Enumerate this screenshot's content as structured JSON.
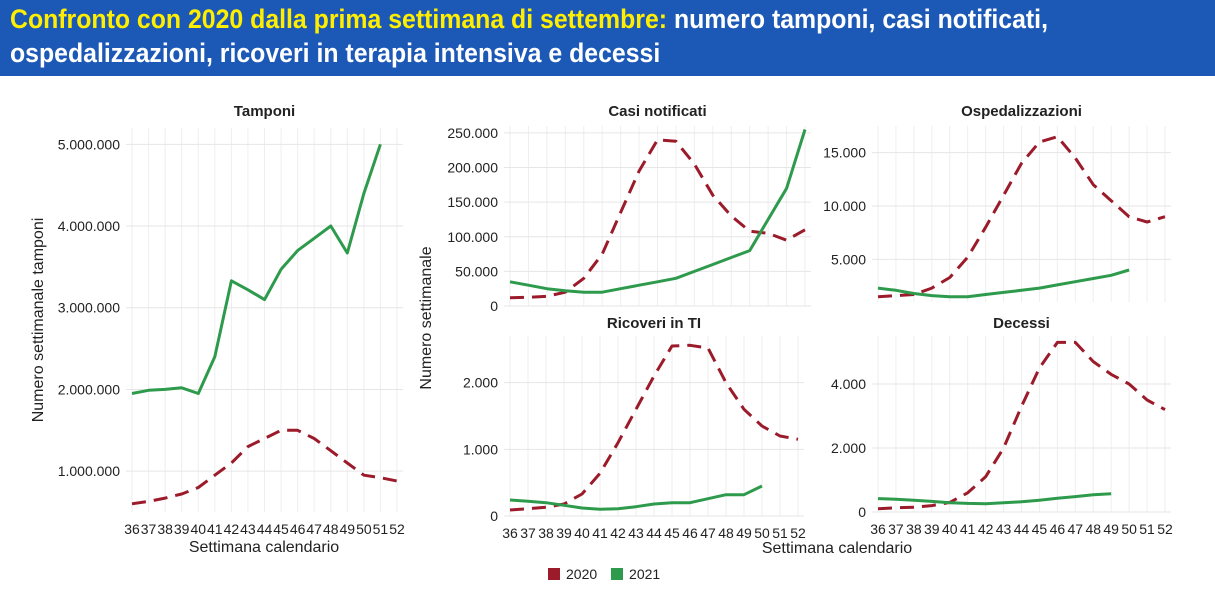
{
  "header": {
    "title_highlight": "Confronto con 2020 dalla prima settimana di settembre:",
    "title_rest_1": "numero tamponi, casi notificati,",
    "title_line_2": "ospedalizzazioni, ricoveri in terapia intensiva e decessi"
  },
  "colors": {
    "banner": "#1c59b7",
    "highlight": "#ffee00",
    "s2020": "#9b1b2a",
    "s2021": "#2e9a4c"
  },
  "legend": [
    {
      "label": "2020",
      "color": "#9b1b2a",
      "style": "dashed"
    },
    {
      "label": "2021",
      "color": "#2e9a4c",
      "style": "solid"
    }
  ],
  "shared_axes": {
    "left_xlabel": "Settimana calendario",
    "left_ylabel": "Numero settimanale tamponi",
    "right_xlabel": "Settimana calendario",
    "right_ylabel": "Numero settimanale"
  },
  "chart_data": [
    {
      "type": "line",
      "title": "Tamponi",
      "x": [
        36,
        37,
        38,
        39,
        40,
        41,
        42,
        43,
        44,
        45,
        46,
        47,
        48,
        49,
        50,
        51,
        52
      ],
      "ylim": [
        500000,
        5200000
      ],
      "yticks": [
        1000000,
        2000000,
        3000000,
        4000000,
        5000000
      ],
      "ytick_labels": [
        "1.000.000",
        "2.000.000",
        "3.000.000",
        "4.000.000",
        "5.000.000"
      ],
      "xtick_labels": [
        "36",
        "37",
        "38",
        "39",
        "40",
        "41",
        "42",
        "43",
        "44",
        "45",
        "46",
        "47",
        "48",
        "49",
        "50",
        "51",
        "52"
      ],
      "series": [
        {
          "name": "2020",
          "values": [
            600000,
            630000,
            670000,
            720000,
            800000,
            950000,
            1100000,
            1300000,
            1400000,
            1500000,
            1500000,
            1400000,
            1250000,
            1100000,
            950000,
            920000,
            880000
          ]
        },
        {
          "name": "2021",
          "values": [
            1950000,
            1990000,
            2000000,
            2020000,
            1950000,
            2400000,
            3330000,
            3220000,
            3100000,
            3470000,
            3700000,
            3850000,
            4000000,
            3670000,
            4400000,
            5000000,
            null
          ]
        }
      ]
    },
    {
      "type": "line",
      "title": "Casi notificati",
      "x": [
        36,
        37,
        38,
        39,
        40,
        41,
        42,
        43,
        44,
        45,
        46,
        47,
        48,
        49,
        50,
        51,
        52
      ],
      "ylim": [
        0,
        260000
      ],
      "yticks": [
        0,
        50000,
        100000,
        150000,
        200000,
        250000
      ],
      "ytick_labels": [
        "0",
        "50.000",
        "100.000",
        "150.000",
        "200.000",
        "250.000"
      ],
      "xtick_labels": [],
      "series": [
        {
          "name": "2020",
          "values": [
            12000,
            12500,
            14000,
            20000,
            40000,
            75000,
            135000,
            195000,
            240000,
            238000,
            205000,
            160000,
            130000,
            108000,
            105000,
            95000,
            110000
          ]
        },
        {
          "name": "2021",
          "values": [
            35000,
            30000,
            25000,
            22000,
            20000,
            20000,
            25000,
            30000,
            35000,
            40000,
            50000,
            60000,
            70000,
            80000,
            125000,
            170000,
            255000
          ]
        }
      ]
    },
    {
      "type": "line",
      "title": "Ospedalizzazioni",
      "x": [
        36,
        37,
        38,
        39,
        40,
        41,
        42,
        43,
        44,
        45,
        46,
        47,
        48,
        49,
        50,
        51,
        52
      ],
      "ylim": [
        1000,
        17500
      ],
      "yticks": [
        5000,
        10000,
        15000
      ],
      "ytick_labels": [
        "5.000",
        "10.000",
        "15.000"
      ],
      "xtick_labels": [],
      "series": [
        {
          "name": "2020",
          "values": [
            1500,
            1600,
            1700,
            2300,
            3300,
            5200,
            8000,
            11000,
            14000,
            16000,
            16500,
            14500,
            12000,
            10500,
            9000,
            8500,
            9000
          ]
        },
        {
          "name": "2021",
          "values": [
            2300,
            2100,
            1800,
            1600,
            1500,
            1500,
            1700,
            1900,
            2100,
            2300,
            2600,
            2900,
            3200,
            3500,
            4000,
            null,
            null
          ]
        }
      ]
    },
    {
      "type": "line",
      "title": "Ricoveri in TI",
      "x": [
        36,
        37,
        38,
        39,
        40,
        41,
        42,
        43,
        44,
        45,
        46,
        47,
        48,
        49,
        50,
        51,
        52
      ],
      "ylim": [
        0,
        2700
      ],
      "yticks": [
        0,
        1000,
        2000
      ],
      "ytick_labels": [
        "0",
        "1.000",
        "2.000"
      ],
      "xtick_labels": [
        "36",
        "37",
        "38",
        "39",
        "40",
        "41",
        "42",
        "43",
        "44",
        "45",
        "46",
        "47",
        "48",
        "49",
        "50",
        "51",
        "52"
      ],
      "series": [
        {
          "name": "2020",
          "values": [
            90,
            110,
            130,
            180,
            330,
            640,
            1100,
            1600,
            2100,
            2550,
            2560,
            2520,
            2000,
            1600,
            1350,
            1200,
            1150
          ]
        },
        {
          "name": "2021",
          "values": [
            240,
            220,
            200,
            160,
            120,
            100,
            110,
            140,
            180,
            200,
            200,
            260,
            320,
            320,
            450,
            null,
            null
          ]
        }
      ]
    },
    {
      "type": "line",
      "title": "Decessi",
      "x": [
        36,
        37,
        38,
        39,
        40,
        41,
        42,
        43,
        44,
        45,
        46,
        47,
        48,
        49,
        50,
        51,
        52
      ],
      "ylim": [
        0,
        5500
      ],
      "yticks": [
        0,
        2000,
        4000
      ],
      "ytick_labels": [
        "0",
        "2.000",
        "4.000"
      ],
      "xtick_labels": [
        "36",
        "37",
        "38",
        "39",
        "40",
        "41",
        "42",
        "43",
        "44",
        "45",
        "46",
        "47",
        "48",
        "49",
        "50",
        "51",
        "52"
      ],
      "series": [
        {
          "name": "2020",
          "values": [
            100,
            130,
            150,
            200,
            300,
            600,
            1100,
            2000,
            3300,
            4500,
            5300,
            5300,
            4700,
            4300,
            4000,
            3500,
            3200
          ]
        },
        {
          "name": "2021",
          "values": [
            420,
            400,
            370,
            330,
            290,
            270,
            260,
            290,
            320,
            370,
            430,
            480,
            540,
            570,
            null,
            null,
            null
          ]
        }
      ]
    }
  ]
}
